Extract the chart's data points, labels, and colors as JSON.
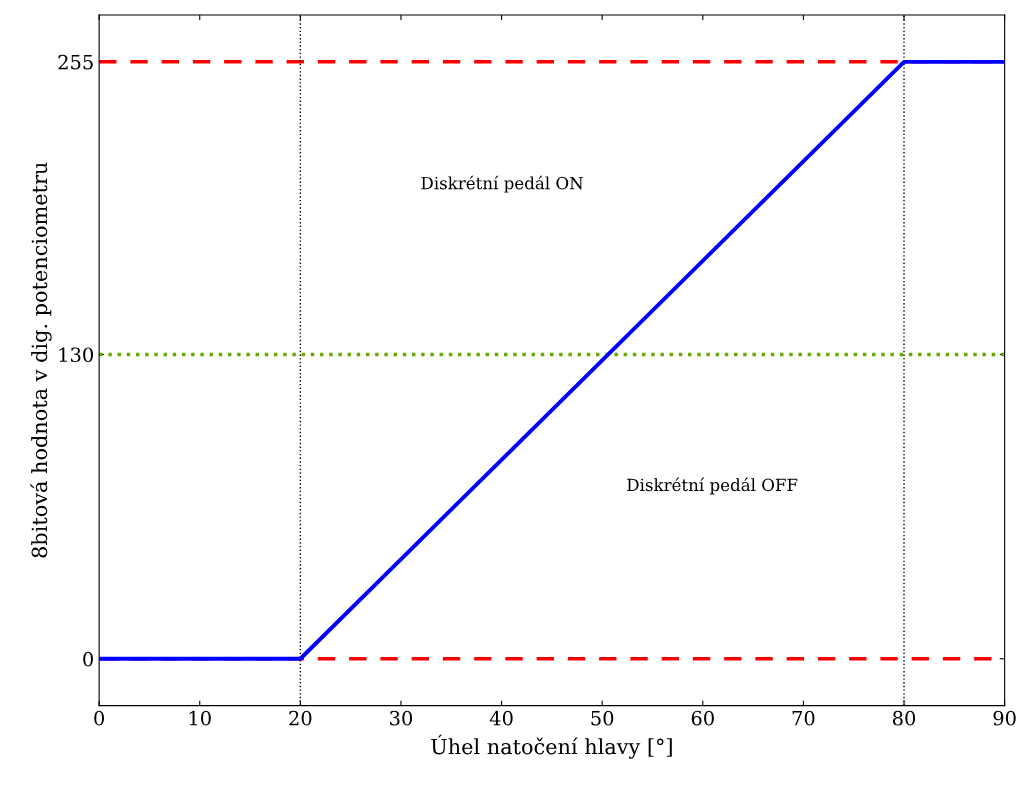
{
  "chart_data": {
    "type": "line",
    "xlabel": "Úhel natočení hlavy [°]",
    "ylabel": "8bitová hodnota v dig. potenciometru",
    "x": [
      0,
      20,
      80,
      90
    ],
    "series": [
      {
        "color": "#0000ff",
        "values": [
          0,
          0,
          255,
          255
        ]
      }
    ],
    "xlim": [
      0,
      90
    ],
    "xticks": [
      0,
      10,
      20,
      30,
      40,
      50,
      60,
      70,
      80,
      90
    ],
    "ylim": [
      -20,
      275
    ],
    "yticks": [
      0,
      130,
      255
    ],
    "ref_lines": [
      {
        "axis": "y",
        "value": 255,
        "color": "#ff0000",
        "line_style": "dashed"
      },
      {
        "axis": "y",
        "value": 0,
        "color": "#ff0000",
        "line_style": "dashed"
      },
      {
        "axis": "y",
        "value": 130,
        "color": "#66aa00",
        "line_style": "dotted"
      },
      {
        "axis": "x",
        "value": 20,
        "color": "#000000",
        "line_style": "dotted"
      },
      {
        "axis": "x",
        "value": 80,
        "color": "#000000",
        "line_style": "dotted"
      }
    ],
    "annotations": [
      "Diskrétní pedál ON",
      "Diskrétní pedál OFF"
    ],
    "grid": false,
    "legend": false,
    "marker": "none",
    "line_style": "solid"
  }
}
